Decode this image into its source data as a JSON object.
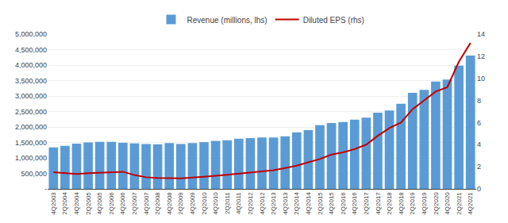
{
  "chart_data": {
    "type": "bar",
    "categories": [
      "4Q2003",
      "2Q2004",
      "4Q2004",
      "2Q2005",
      "4Q2005",
      "2Q2006",
      "4Q2006",
      "2Q2007",
      "4Q2007",
      "2Q2008",
      "4Q2008",
      "2Q2009",
      "4Q2009",
      "2Q2010",
      "4Q2010",
      "2Q2011",
      "4Q2011",
      "2Q2012",
      "4Q2012",
      "2Q2013",
      "4Q2013",
      "2Q2014",
      "4Q2014",
      "2Q2015",
      "4Q2015",
      "2Q2016",
      "4Q2016",
      "2Q2017",
      "4Q2017",
      "2Q2018",
      "4Q2018",
      "2Q2019",
      "4Q2019",
      "2Q2020",
      "4Q2020",
      "2Q2021",
      "4Q2021"
    ],
    "series": [
      {
        "name": "Revenue (millions, lhs)",
        "type": "bar",
        "color": "#5B9BD5",
        "values": [
          1340000,
          1390000,
          1460000,
          1500000,
          1520000,
          1520000,
          1490000,
          1470000,
          1450000,
          1440000,
          1480000,
          1450000,
          1480000,
          1510000,
          1550000,
          1570000,
          1620000,
          1640000,
          1660000,
          1660000,
          1700000,
          1830000,
          1900000,
          2060000,
          2130000,
          2160000,
          2240000,
          2300000,
          2460000,
          2530000,
          2750000,
          3100000,
          3200000,
          3470000,
          3530000,
          3980000,
          4310000
        ]
      },
      {
        "name": "Diluted EPS (rhs)",
        "type": "line",
        "color": "#C00000",
        "axis": "y2",
        "values": [
          1.5,
          1.45,
          1.35,
          1.42,
          1.48,
          1.5,
          1.55,
          1.25,
          1.05,
          0.98,
          0.98,
          0.95,
          1.02,
          1.08,
          1.18,
          1.28,
          1.38,
          1.48,
          1.58,
          1.68,
          1.88,
          2.1,
          2.4,
          2.7,
          3.1,
          3.3,
          3.6,
          4.0,
          4.8,
          5.5,
          6.0,
          7.2,
          8.0,
          8.8,
          9.2,
          11.5,
          13.2
        ]
      }
    ],
    "ylim": [
      0,
      5000000
    ],
    "yticks": [
      {
        "value": 0,
        "label": "-"
      },
      {
        "value": 500000,
        "label": "500,000"
      },
      {
        "value": 1000000,
        "label": "1,000,000"
      },
      {
        "value": 1500000,
        "label": "1,500,000"
      },
      {
        "value": 2000000,
        "label": "2,000,000"
      },
      {
        "value": 2500000,
        "label": "2,500,000"
      },
      {
        "value": 3000000,
        "label": "3,000,000"
      },
      {
        "value": 3500000,
        "label": "3,500,000"
      },
      {
        "value": 4000000,
        "label": "4,000,000"
      },
      {
        "value": 4500000,
        "label": "4,500,000"
      },
      {
        "value": 5000000,
        "label": "5,000,000"
      }
    ],
    "y2lim": [
      0,
      14
    ],
    "y2ticks": [
      0,
      2,
      4,
      6,
      8,
      10,
      12,
      14
    ],
    "grid": true,
    "legend": "top"
  }
}
